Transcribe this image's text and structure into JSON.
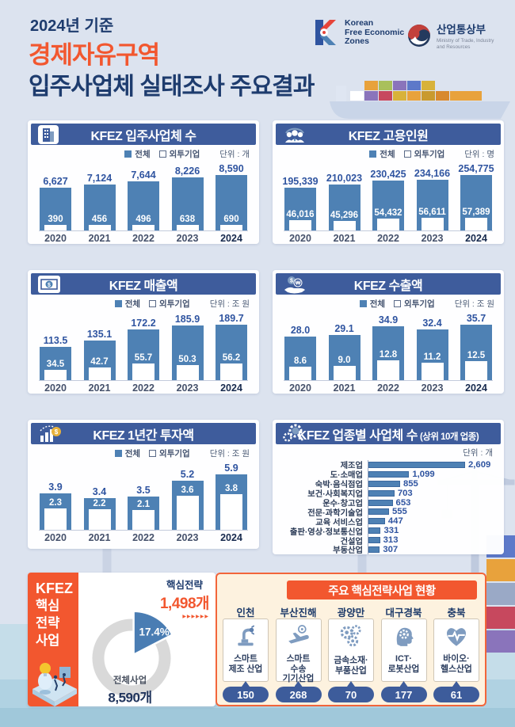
{
  "header": {
    "kicker": "2024년 기준",
    "title_accent": "경제자유구역",
    "title_main": "입주사업체 실태조사 주요결과",
    "kfez_logo": {
      "name": "Korean\nFree Economic\nZones"
    },
    "motie_logo": {
      "name": "산업통상부",
      "sub": "Ministry of Trade, Industry\nand Resources"
    }
  },
  "legend_labels": {
    "total": "전체",
    "foreign": "외투기업"
  },
  "chart_data": [
    {
      "type": "bar",
      "icon": "building-icon",
      "title": "KFEZ 입주사업체 수",
      "unit_label": "단위 : 개",
      "decimals": 0,
      "categories": [
        "2020",
        "2021",
        "2022",
        "2023",
        "2024"
      ],
      "series": [
        {
          "name": "전체",
          "values": [
            6627,
            7124,
            7644,
            8226,
            8590
          ]
        },
        {
          "name": "외투기업",
          "values": [
            390,
            456,
            496,
            638,
            690
          ]
        }
      ]
    },
    {
      "type": "bar",
      "icon": "people-icon",
      "title": "KFEZ 고용인원",
      "unit_label": "단위 : 명",
      "decimals": 0,
      "categories": [
        "2020",
        "2021",
        "2022",
        "2023",
        "2024"
      ],
      "series": [
        {
          "name": "전체",
          "values": [
            195339,
            210023,
            230425,
            234166,
            254775
          ]
        },
        {
          "name": "외투기업",
          "values": [
            46016,
            45296,
            54432,
            56611,
            57389
          ]
        }
      ]
    },
    {
      "type": "bar",
      "icon": "banknote-icon",
      "title": "KFEZ 매출액",
      "unit_label": "단위 : 조 원",
      "decimals": 1,
      "categories": [
        "2020",
        "2021",
        "2022",
        "2023",
        "2024"
      ],
      "series": [
        {
          "name": "전체",
          "values": [
            113.5,
            135.1,
            172.2,
            185.9,
            189.7
          ]
        },
        {
          "name": "외투기업",
          "values": [
            34.5,
            42.7,
            55.7,
            50.3,
            56.2
          ]
        }
      ]
    },
    {
      "type": "bar",
      "icon": "hand-coin-icon",
      "title": "KFEZ 수출액",
      "unit_label": "단위 : 조 원",
      "decimals": 1,
      "categories": [
        "2020",
        "2021",
        "2022",
        "2023",
        "2024"
      ],
      "series": [
        {
          "name": "전체",
          "values": [
            28.0,
            29.1,
            34.9,
            32.4,
            35.7
          ]
        },
        {
          "name": "외투기업",
          "values": [
            8.6,
            9.0,
            12.8,
            11.2,
            12.5
          ]
        }
      ]
    },
    {
      "type": "bar",
      "icon": "invest-chart-icon",
      "title": "KFEZ 1년간 투자액",
      "unit_label": "단위 : 조 원",
      "decimals": 1,
      "categories": [
        "2020",
        "2021",
        "2022",
        "2023",
        "2024"
      ],
      "series": [
        {
          "name": "전체",
          "values": [
            3.9,
            3.4,
            3.5,
            5.2,
            5.9
          ]
        },
        {
          "name": "외투기업",
          "values": [
            2.3,
            2.2,
            2.1,
            3.6,
            3.8
          ]
        }
      ]
    },
    {
      "type": "bar-horizontal",
      "icon": "gear-magnifier-icon",
      "title": "KFEZ 업종별 사업체 수",
      "title_suffix": "(상위 10개 업종)",
      "unit_label": "단위 : 개",
      "decimals": 0,
      "categories": [
        "제조업",
        "도·소매업",
        "숙박·음식점업",
        "보건·사회복지업",
        "운수·창고업",
        "전문·과학기술업",
        "교육 서비스업",
        "출판·영상·정보통신업",
        "건설업",
        "부동산업"
      ],
      "values": [
        2609,
        1099,
        855,
        703,
        653,
        555,
        447,
        331,
        313,
        307
      ]
    },
    {
      "type": "pie",
      "title": "KFEZ 핵심전략사업",
      "labels": [
        "핵심전략 1,498개",
        "전체사업 8,590개"
      ],
      "values": [
        17.4,
        82.6
      ]
    }
  ],
  "strategy": {
    "sidebar_lines": [
      "KFEZ",
      "핵심",
      "전략",
      "사업"
    ],
    "donut": {
      "slice_label": "핵심전략",
      "slice_value": "1,498개",
      "slice_pct": "17.4%",
      "pct": 17.4,
      "arrows": "▶▶▶▶▶▶",
      "center_label": "전체사업",
      "center_value": "8,590개"
    },
    "panel": {
      "title": "주요 핵심전략사업 현황",
      "regions": [
        {
          "name": "인천",
          "industry": "스마트\n제조 산업",
          "count": "150",
          "icon": "robot-arm-icon"
        },
        {
          "name": "부산진해",
          "industry": "스마트\n수송\n기기산업",
          "count": "268",
          "icon": "airplane-icon"
        },
        {
          "name": "광양만",
          "industry": "금속소재·\n부품산업",
          "count": "70",
          "icon": "gears-icon"
        },
        {
          "name": "대구경북",
          "industry": "ICT·\n로봇산업",
          "count": "177",
          "icon": "head-gear-icon"
        },
        {
          "name": "충북",
          "industry": "바이오·\n헬스산업",
          "count": "61",
          "icon": "heart-pulse-icon"
        }
      ]
    }
  },
  "colors": {
    "panel_navy": "#3e5c9c",
    "bar_blue": "#4e81b4",
    "value_navy": "#2f54a0",
    "accent_orange": "#f2572f",
    "pill_navy": "#3d5c9b",
    "ring_gray": "#d9d9d9"
  }
}
